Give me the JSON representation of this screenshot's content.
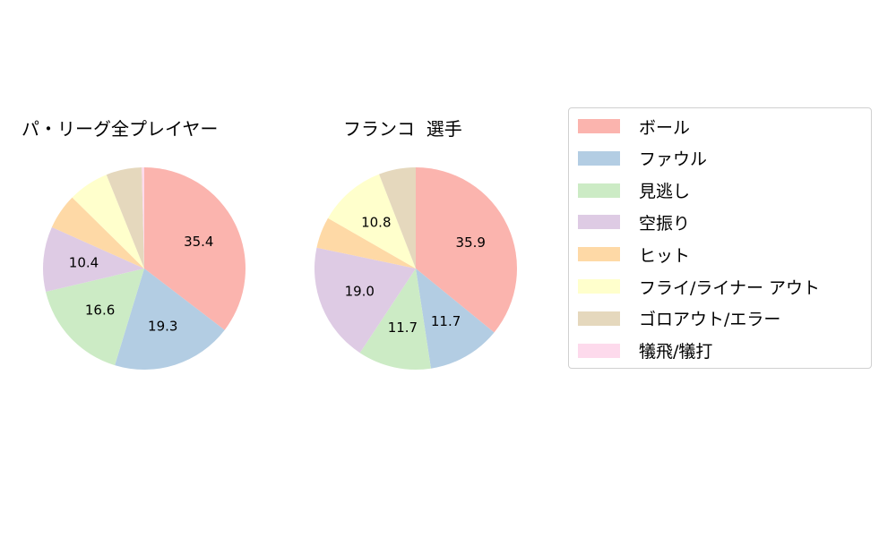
{
  "chart_data": [
    {
      "type": "pie",
      "title": "パ・リーグ全プレイヤー",
      "categories": [
        "ボール",
        "ファウル",
        "見逃し",
        "空振り",
        "ヒット",
        "フライ/ライナー アウト",
        "ゴロアウト/エラー",
        "犠飛/犠打"
      ],
      "values": [
        35.4,
        19.3,
        16.6,
        10.4,
        5.7,
        6.5,
        5.7,
        0.4
      ],
      "labels_shown": [
        "35.4",
        "19.3",
        "16.6",
        "10.4",
        "",
        "",
        "",
        ""
      ],
      "start_angle": 90,
      "direction": "clockwise"
    },
    {
      "type": "pie",
      "title": "フランコ  選手",
      "categories": [
        "ボール",
        "ファウル",
        "見逃し",
        "空振り",
        "ヒット",
        "フライ/ライナー アウト",
        "ゴロアウト/エラー",
        "犠飛/犠打"
      ],
      "values": [
        35.9,
        11.7,
        11.7,
        19.0,
        5.0,
        10.8,
        5.9,
        0.0
      ],
      "labels_shown": [
        "35.9",
        "11.7",
        "11.7",
        "19.0",
        "",
        "10.8",
        "",
        ""
      ],
      "start_angle": 90,
      "direction": "clockwise"
    }
  ],
  "legend": {
    "items": [
      {
        "label": "ボール",
        "color": "#fbb4ae"
      },
      {
        "label": "ファウル",
        "color": "#b3cde3"
      },
      {
        "label": "見逃し",
        "color": "#ccebc5"
      },
      {
        "label": "空振り",
        "color": "#decbe4"
      },
      {
        "label": "ヒット",
        "color": "#fed9a6"
      },
      {
        "label": "フライ/ライナー アウト",
        "color": "#ffffcc"
      },
      {
        "label": "ゴロアウト/エラー",
        "color": "#e5d8bd"
      },
      {
        "label": "犠飛/犠打",
        "color": "#fddaec"
      }
    ]
  },
  "titles": {
    "left": "パ・リーグ全プレイヤー",
    "right": "フランコ  選手"
  }
}
